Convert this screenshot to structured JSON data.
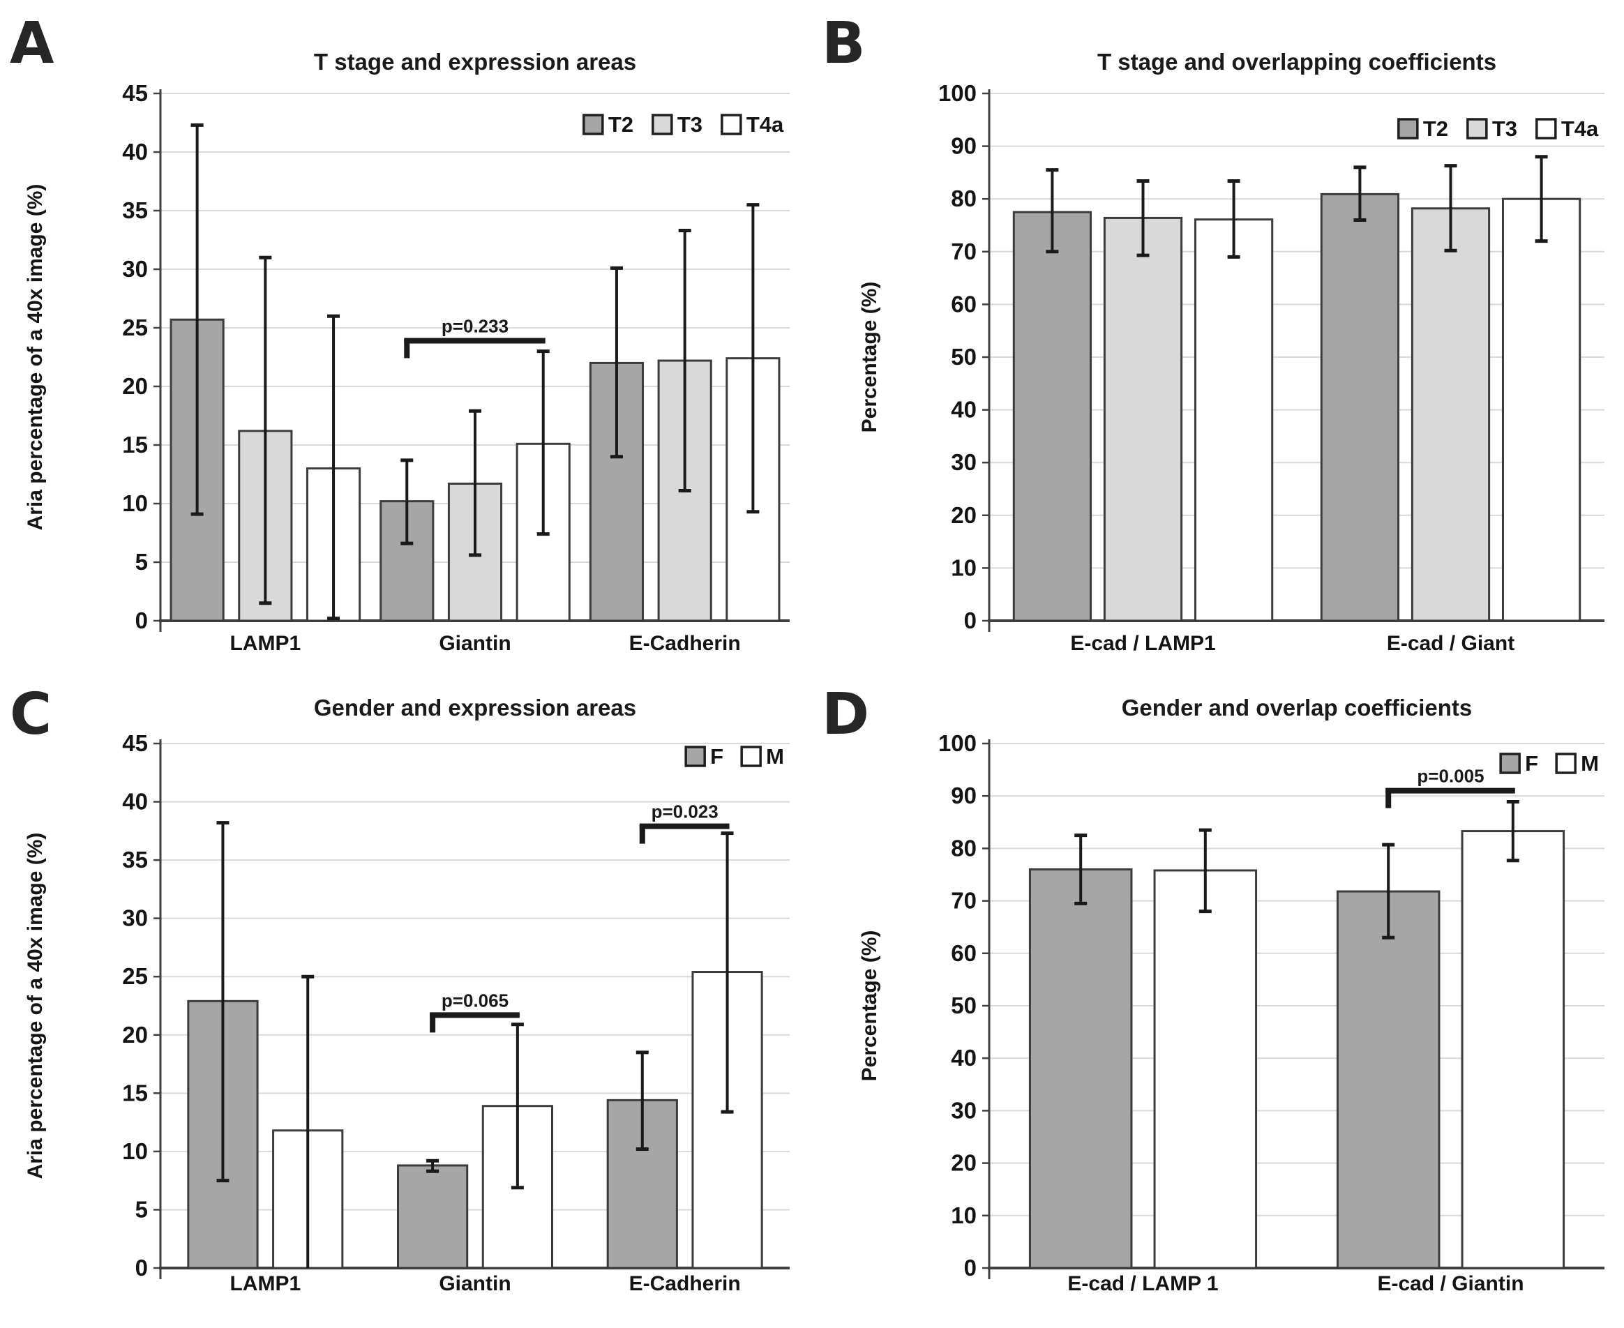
{
  "figure": {
    "background": "#ffffff",
    "colors": {
      "fill_dark_gray": "#a6a6a6",
      "fill_light_gray": "#d9d9d9",
      "fill_white": "#ffffff",
      "bar_border": "#3c3c3c",
      "error_bar": "#1a1a1a",
      "gridline": "#d9d9d9",
      "axis": "#404040",
      "text": "#1a1a1a"
    }
  },
  "chart_data": [
    {
      "letter": "A",
      "type": "bar",
      "title": "T stage and expression areas",
      "ylabel": "Aria percentage of a 40x image (%)",
      "categories": [
        "LAMP1",
        "Giantin",
        "E-Cadherin"
      ],
      "ylim": [
        0,
        45
      ],
      "ystep": 5,
      "grid": true,
      "legend_position": "top-right-inside",
      "series": [
        {
          "name": "T2",
          "fill": "#a6a6a6",
          "values": [
            25.7,
            10.2,
            22.0
          ],
          "err_low": [
            9.1,
            6.6,
            14.0
          ],
          "err_high": [
            42.3,
            13.7,
            30.1
          ]
        },
        {
          "name": "T3",
          "fill": "#d9d9d9",
          "values": [
            16.2,
            11.7,
            22.2
          ],
          "err_low": [
            1.5,
            5.6,
            11.1
          ],
          "err_high": [
            31.0,
            17.9,
            33.3
          ]
        },
        {
          "name": "T4a",
          "fill": "#ffffff",
          "values": [
            13.0,
            15.1,
            22.4
          ],
          "err_low": [
            0.2,
            7.4,
            9.3
          ],
          "err_high": [
            26.0,
            23.0,
            35.5
          ]
        }
      ],
      "annotations": [
        {
          "label": "p=0.233",
          "category": 1,
          "from": 0,
          "to": 2,
          "y": 23.9
        }
      ]
    },
    {
      "letter": "B",
      "type": "bar",
      "title": "T stage and overlapping coefficients",
      "ylabel": "Percentage (%)",
      "categories": [
        "E-cad / LAMP1",
        "E-cad / Giant"
      ],
      "ylim": [
        0,
        100
      ],
      "ystep": 10,
      "grid": true,
      "legend_position": "top-right-inside",
      "series": [
        {
          "name": "T2",
          "fill": "#a6a6a6",
          "values": [
            77.5,
            80.9
          ],
          "err_low": [
            70.0,
            76.0
          ],
          "err_high": [
            85.5,
            86.0
          ]
        },
        {
          "name": "T3",
          "fill": "#d9d9d9",
          "values": [
            76.4,
            78.2
          ],
          "err_low": [
            69.3,
            70.2
          ],
          "err_high": [
            83.4,
            86.3
          ]
        },
        {
          "name": "T4a",
          "fill": "#ffffff",
          "values": [
            76.1,
            80.0
          ],
          "err_low": [
            69.0,
            72.0
          ],
          "err_high": [
            83.4,
            88.0
          ]
        }
      ],
      "annotations": []
    },
    {
      "letter": "C",
      "type": "bar",
      "title": "Gender and expression areas",
      "ylabel": "Aria percentage of a 40x image (%)",
      "categories": [
        "LAMP1",
        "Giantin",
        "E-Cadherin"
      ],
      "ylim": [
        0,
        45
      ],
      "ystep": 5,
      "grid": true,
      "legend_position": "top-right-inside",
      "series": [
        {
          "name": "F",
          "fill": "#a6a6a6",
          "values": [
            22.9,
            8.8,
            14.4
          ],
          "err_low": [
            7.5,
            8.3,
            10.2
          ],
          "err_high": [
            38.2,
            9.2,
            18.5
          ]
        },
        {
          "name": "M",
          "fill": "#ffffff",
          "values": [
            11.8,
            13.9,
            25.4
          ],
          "err_low": [
            null,
            6.9,
            13.4
          ],
          "err_high": [
            25.0,
            20.9,
            37.3
          ]
        }
      ],
      "annotations": [
        {
          "label": "p=0.065",
          "category": 1,
          "from": 0,
          "to": 1,
          "y": 21.7
        },
        {
          "label": "p=0.023",
          "category": 2,
          "from": 0,
          "to": 1,
          "y": 37.9
        }
      ]
    },
    {
      "letter": "D",
      "type": "bar",
      "title": "Gender and overlap coefficients",
      "ylabel": "Percentage (%)",
      "categories": [
        "E-cad / LAMP 1",
        "E-cad / Giantin"
      ],
      "ylim": [
        0,
        100
      ],
      "ystep": 10,
      "grid": true,
      "legend_position": "top-right-inside",
      "series": [
        {
          "name": "F",
          "fill": "#a6a6a6",
          "values": [
            76.0,
            71.8
          ],
          "err_low": [
            69.5,
            63.0
          ],
          "err_high": [
            82.5,
            80.7
          ]
        },
        {
          "name": "M",
          "fill": "#ffffff",
          "values": [
            75.8,
            83.3
          ],
          "err_low": [
            68.0,
            77.7
          ],
          "err_high": [
            83.5,
            88.9
          ]
        }
      ],
      "annotations": [
        {
          "label": "p=0.005",
          "category": 1,
          "from": 0,
          "to": 1,
          "y": 91.0
        }
      ]
    }
  ]
}
